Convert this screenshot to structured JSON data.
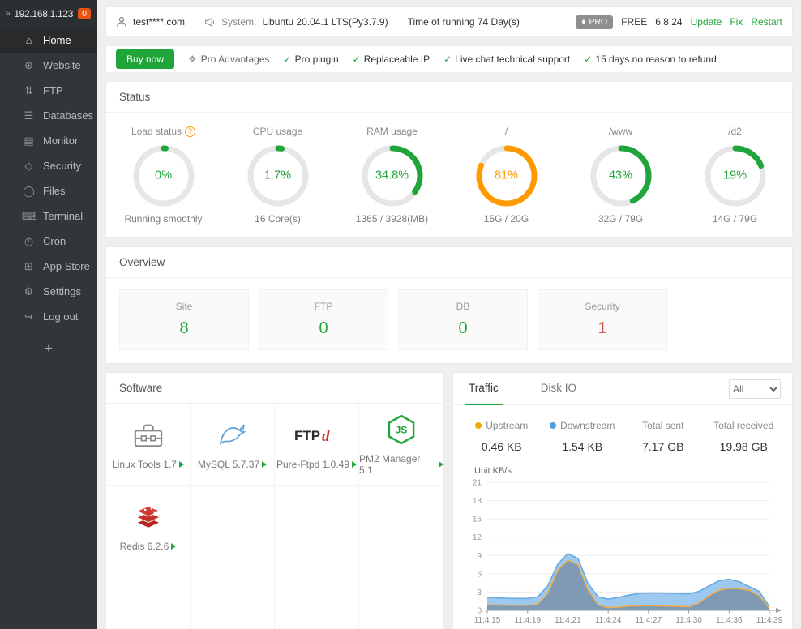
{
  "sidebar": {
    "server_ip": "192.168.1.123",
    "badge_count": "0",
    "items": [
      {
        "label": "Home",
        "icon": "home-icon",
        "active": true
      },
      {
        "label": "Website",
        "icon": "globe-icon"
      },
      {
        "label": "FTP",
        "icon": "ftp-icon"
      },
      {
        "label": "Databases",
        "icon": "database-icon"
      },
      {
        "label": "Monitor",
        "icon": "monitor-icon"
      },
      {
        "label": "Security",
        "icon": "shield-icon"
      },
      {
        "label": "Files",
        "icon": "folder-icon"
      },
      {
        "label": "Terminal",
        "icon": "terminal-icon"
      },
      {
        "label": "Cron",
        "icon": "clock-icon"
      },
      {
        "label": "App Store",
        "icon": "grid-icon"
      },
      {
        "label": "Settings",
        "icon": "gear-icon"
      },
      {
        "label": "Log out",
        "icon": "logout-icon"
      }
    ],
    "add_label": "+"
  },
  "topbar": {
    "account": "test****.com",
    "system_label": "System:",
    "system_value": "Ubuntu 20.04.1 LTS(Py3.7.9)",
    "uptime": "Time of running 74 Day(s)",
    "pro_badge": "PRO",
    "edition": "FREE",
    "version": "6.8.24",
    "update_label": "Update",
    "fix_label": "Fix",
    "restart_label": "Restart"
  },
  "promo": {
    "buy_now": "Buy now",
    "advantages": "Pro Advantages",
    "features": [
      {
        "text": "Pro plugin"
      },
      {
        "text": "Replaceable IP"
      },
      {
        "text": "Live chat technical support"
      },
      {
        "text": "15 days no reason to refund"
      }
    ]
  },
  "status": {
    "title": "Status",
    "gauges": [
      {
        "label": "Load status",
        "value": "0%",
        "pct": 1.2,
        "color": "#20a53a",
        "sub": "Running smoothly",
        "help": true
      },
      {
        "label": "CPU usage",
        "value": "1.7%",
        "pct": 2.2,
        "color": "#20a53a",
        "sub": "16 Core(s)"
      },
      {
        "label": "RAM usage",
        "value": "34.8%",
        "pct": 34.8,
        "color": "#20a53a",
        "sub": "1365 / 3928(MB)"
      },
      {
        "label": "/",
        "value": "81%",
        "pct": 81,
        "color": "#ff9b00",
        "sub": "15G / 20G"
      },
      {
        "label": "/www",
        "value": "43%",
        "pct": 43,
        "color": "#20a53a",
        "sub": "32G / 79G"
      },
      {
        "label": "/d2",
        "value": "19%",
        "pct": 19,
        "color": "#20a53a",
        "sub": "14G / 79G"
      }
    ]
  },
  "overview": {
    "title": "Overview",
    "cards": [
      {
        "label": "Site",
        "value": "8",
        "color": "#20a53a"
      },
      {
        "label": "FTP",
        "value": "0",
        "color": "#20a53a"
      },
      {
        "label": "DB",
        "value": "0",
        "color": "#20a53a"
      },
      {
        "label": "Security",
        "value": "1",
        "color": "#d9534f"
      }
    ]
  },
  "software": {
    "title": "Software",
    "items": [
      {
        "name": "Linux Tools 1.7",
        "icon": "toolbox-icon"
      },
      {
        "name": "MySQL 5.7.37",
        "icon": "mysql-dolphin-icon"
      },
      {
        "name": "Pure-Ftpd 1.0.49",
        "icon": "ftpd-logo-icon"
      },
      {
        "name": "PM2 Manager 5.1",
        "icon": "nodejs-hexagon-icon"
      },
      {
        "name": "Redis 6.2.6",
        "icon": "redis-cube-icon"
      }
    ]
  },
  "traffic": {
    "tabs": [
      {
        "label": "Traffic",
        "active": true
      },
      {
        "label": "Disk IO",
        "active": false
      }
    ],
    "filter_value": "All",
    "stats": [
      {
        "label": "Upstream",
        "value": "0.46 KB",
        "dot": "#f0a800"
      },
      {
        "label": "Downstream",
        "value": "1.54 KB",
        "dot": "#4f9ee0"
      },
      {
        "label": "Total sent",
        "value": "7.17 GB"
      },
      {
        "label": "Total received",
        "value": "19.98 GB"
      }
    ]
  },
  "chart_data": {
    "type": "area",
    "title": "Traffic",
    "unit_label": "Unit:KB/s",
    "ylabel": "KB/s",
    "ylim": [
      0,
      21
    ],
    "yticks": [
      0,
      3,
      6,
      9,
      12,
      15,
      18,
      21
    ],
    "x_labels": [
      "11:4:15",
      "11:4:19",
      "11:4:21",
      "11:4:24",
      "11:4:27",
      "11:4:30",
      "11:4:36",
      "11:4:39"
    ],
    "grid": true,
    "legend_position": "top",
    "sampling": "uniform across x_labels range",
    "series": [
      {
        "name": "Downstream",
        "color": "#66abe3",
        "fill": "rgba(140,191,238,0.85)",
        "values": [
          2.1,
          2.05,
          2.0,
          1.95,
          1.95,
          2.2,
          4.0,
          7.6,
          9.3,
          8.5,
          4.4,
          2.2,
          1.85,
          2.1,
          2.5,
          2.75,
          2.85,
          2.85,
          2.8,
          2.75,
          2.7,
          3.1,
          4.0,
          4.85,
          5.1,
          4.7,
          3.9,
          3.1,
          0.6
        ]
      },
      {
        "name": "Upstream",
        "color": "#f0ad4e",
        "fill": "rgba(100,115,130,0.55)",
        "values": [
          0.9,
          0.88,
          0.85,
          0.83,
          0.85,
          1.0,
          2.8,
          6.6,
          8.25,
          7.5,
          3.4,
          0.9,
          0.45,
          0.55,
          0.7,
          0.75,
          0.78,
          0.75,
          0.7,
          0.65,
          0.6,
          1.2,
          2.4,
          3.3,
          3.6,
          3.55,
          3.3,
          2.4,
          0.3
        ]
      }
    ]
  }
}
